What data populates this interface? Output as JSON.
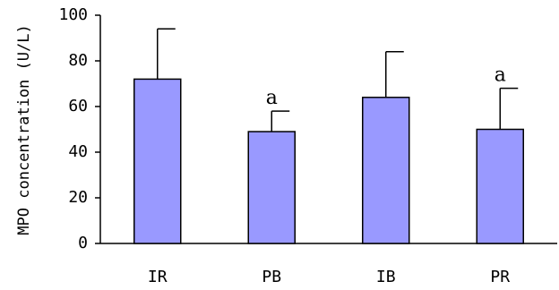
{
  "chart_data": {
    "type": "bar",
    "title": "",
    "xlabel": "",
    "ylabel": "MPO concentration (U/L)",
    "ylim": [
      0,
      100
    ],
    "yticks": [
      0,
      20,
      40,
      60,
      80,
      100
    ],
    "categories": [
      "IR",
      "PB",
      "IB",
      "PR"
    ],
    "values": [
      72,
      49,
      64,
      50
    ],
    "error_upper": [
      94,
      58,
      84,
      68
    ],
    "annotations": [
      "",
      "a",
      "",
      "a"
    ],
    "bar_color": "#9999ff",
    "grid": false,
    "legend": "none"
  }
}
